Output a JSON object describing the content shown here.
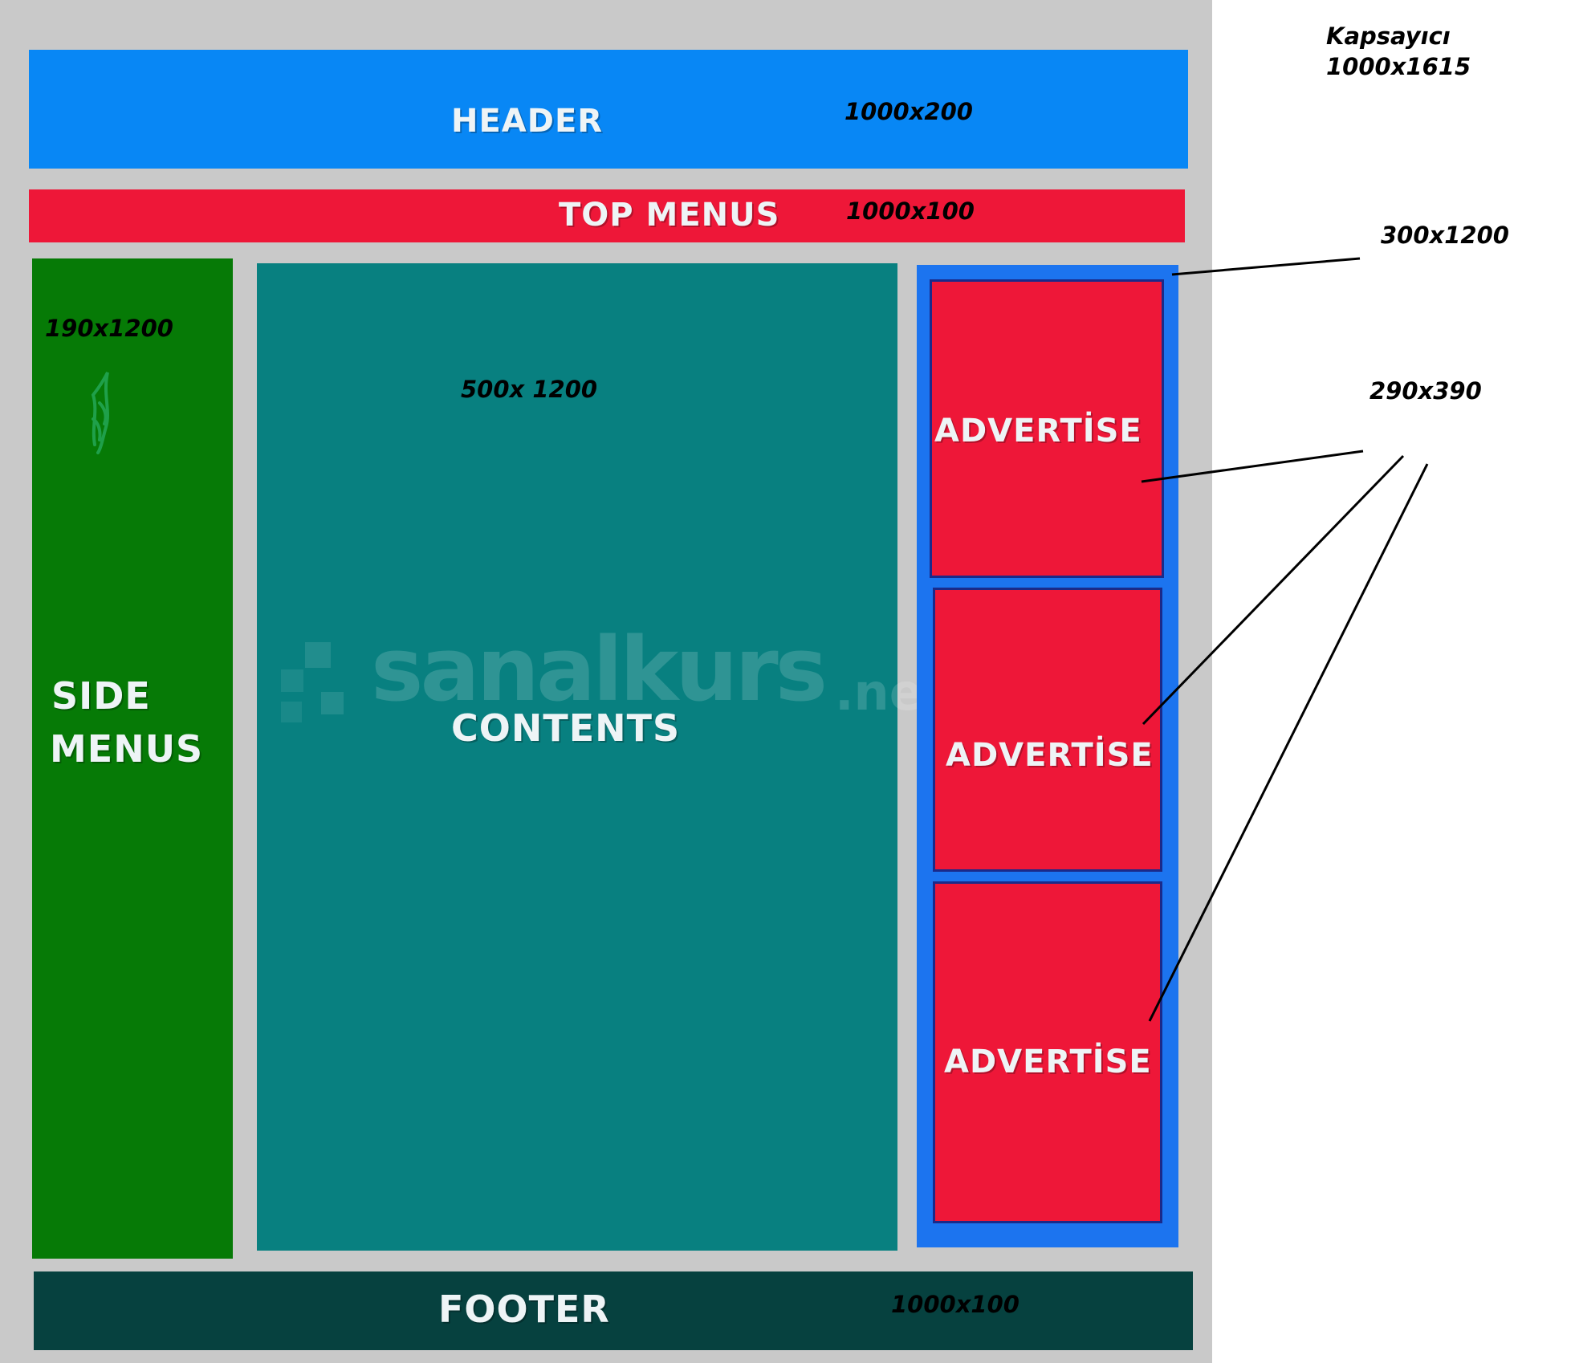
{
  "container": {
    "label": "Kapsayıcı",
    "size": "1000x1615"
  },
  "header": {
    "label": "HEADER",
    "size": "1000x200"
  },
  "top_menus": {
    "label": "TOP MENUS",
    "size": "1000x100"
  },
  "side_menus": {
    "label_line1": "SIDE",
    "label_line2": "MENUS",
    "size": "190x1200"
  },
  "contents": {
    "label": "CONTENTS",
    "size": "500x 1200"
  },
  "ad_column": {
    "size": "300x1200"
  },
  "ads": {
    "size": "290x390",
    "items": [
      {
        "label": "ADVERTİSE"
      },
      {
        "label": "ADVERTİSE"
      },
      {
        "label": "ADVERTİSE"
      }
    ]
  },
  "footer": {
    "label": "FOOTER",
    "size": "1000x100"
  },
  "watermark": {
    "brand": "sanalkurs",
    "tld": ".net"
  },
  "colors": {
    "outer_frame": "#c9c9c9",
    "header": "#0887f5",
    "top_menus": "#ee1738",
    "side_menus": "#067a06",
    "contents": "#088080",
    "ad_column": "#1c74ef",
    "ad": "#ee1738",
    "footer": "#06413f",
    "annotation_line": "#000000"
  }
}
